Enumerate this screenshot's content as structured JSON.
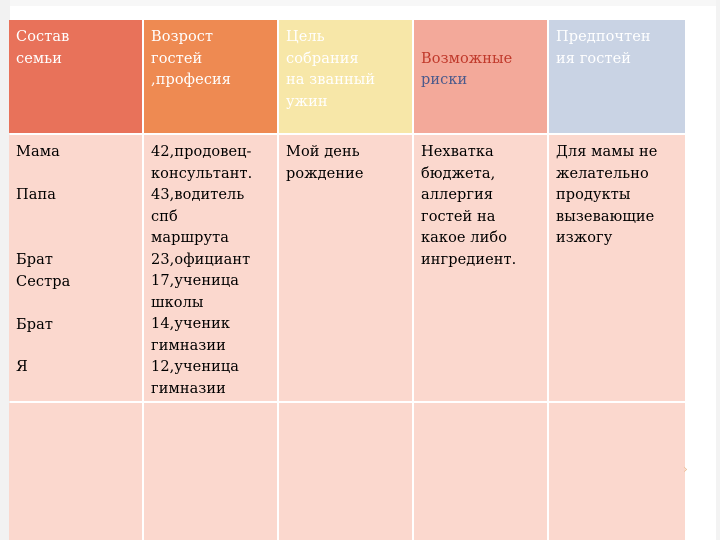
{
  "colors": {
    "header_col1": "#e8725a",
    "header_col2": "#ee8a52",
    "header_col3": "#f7e7a8",
    "header_col4": "#f3a99a",
    "header_col5": "#c9d3e4",
    "body": "#fbd8ce"
  },
  "table": {
    "headers": [
      "Состав\nсемьи",
      "Возрост\nгостей\n,професия",
      "Цель\nсобрания\nна званный\nужин",
      "Возможные\nриски",
      "Предпочтен\nия гостей"
    ],
    "members": [
      "Мама",
      "Папа",
      "Брат\nСестра",
      "Брат",
      "Я"
    ],
    "ages_professions": "42,продовец-\nконсультант.\n43,водитель\nспб\nмаршрута\n23,официант\n17,ученица\nшколы\n14,ученик\nгимназии\n12,ученица\nгимназии",
    "purpose": "Мой день\nрождение",
    "risks": "Нехватка\nбюджета,\nаллергия\nгостей на\nкакое либо\nингредиент.",
    "preferences": "Для мамы не\nжелательно\nпродукты\nвызевающие\nизжогу"
  }
}
